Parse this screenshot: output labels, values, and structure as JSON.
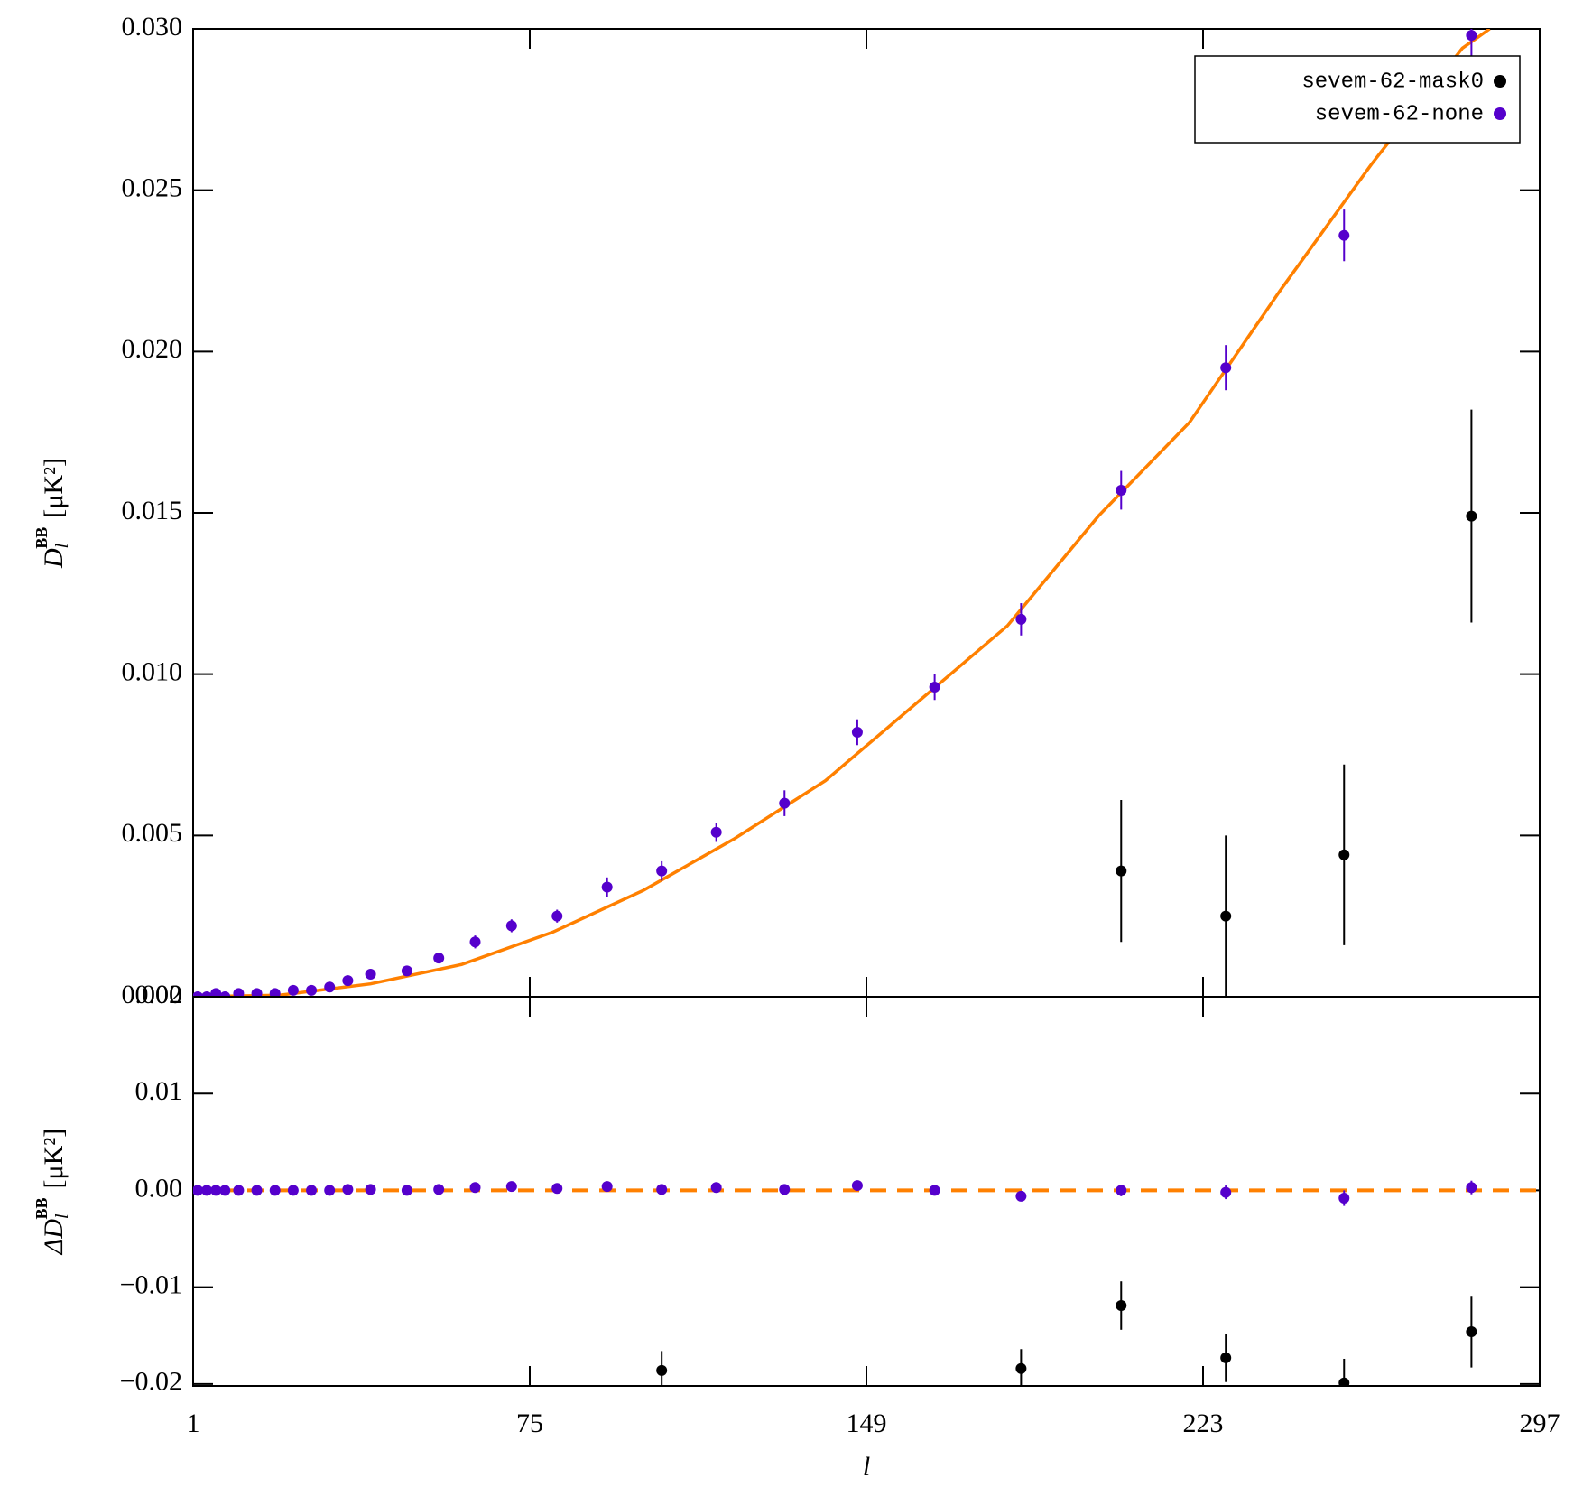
{
  "chart_data": [
    {
      "type": "scatter",
      "ylabel": {
        "symbol": "D",
        "sub": "l",
        "sup": "BB",
        "unit": "[μK²]"
      },
      "xlim": [
        1,
        297
      ],
      "xticks": [
        1,
        75,
        149,
        223,
        297
      ],
      "ylim": [
        0,
        0.03
      ],
      "yticks": [
        {
          "value": 0,
          "label": "0.000"
        },
        {
          "value": 0.005,
          "label": "0.005"
        },
        {
          "value": 0.01,
          "label": "0.010"
        },
        {
          "value": 0.015,
          "label": "0.015"
        },
        {
          "value": 0.02,
          "label": "0.020"
        },
        {
          "value": 0.025,
          "label": "0.025"
        },
        {
          "value": 0.03,
          "label": "0.030"
        }
      ],
      "legend": "upper right",
      "series": [
        {
          "name": "sevem-62-mask0",
          "color": "#000000",
          "x": [
            205,
            228,
            254,
            282
          ],
          "values": [
            0.0039,
            0.0025,
            0.0044,
            0.0149
          ],
          "errors": [
            0.0022,
            0.0025,
            0.0028,
            0.0033
          ]
        },
        {
          "name": "sevem-62-none",
          "color": "#5500cc",
          "x": [
            2,
            4,
            6,
            8,
            11,
            15,
            19,
            23,
            27,
            31,
            35,
            40,
            48,
            55,
            63,
            71,
            81,
            92,
            104,
            116,
            131,
            147,
            164,
            183,
            205,
            228,
            254,
            282
          ],
          "values": [
            0,
            0,
            0.0001,
            0,
            0.0001,
            0.0001,
            0.0001,
            0.0002,
            0.0002,
            0.0003,
            0.0005,
            0.0007,
            0.0008,
            0.0012,
            0.0017,
            0.0022,
            0.0025,
            0.0034,
            0.0039,
            0.0051,
            0.006,
            0.0082,
            0.0096,
            0.0117,
            0.0157,
            0.0195,
            0.0236,
            0.0298
          ],
          "errors": [
            5e-05,
            5e-05,
            5e-05,
            5e-05,
            5e-05,
            5e-05,
            5e-05,
            5e-05,
            5e-05,
            0.0001,
            0.0001,
            0.0001,
            0.0001,
            0.0001,
            0.0002,
            0.0002,
            0.0002,
            0.0003,
            0.0003,
            0.0003,
            0.0004,
            0.0004,
            0.0004,
            0.0005,
            0.0006,
            0.0007,
            0.0008,
            0.0007
          ]
        }
      ],
      "curve": {
        "color": "#ff8000",
        "x": [
          1,
          20,
          40,
          60,
          80,
          100,
          120,
          140,
          160,
          180,
          200,
          220,
          240,
          260,
          280,
          286
        ],
        "values": [
          0,
          5e-05,
          0.0004,
          0.001,
          0.002,
          0.0033,
          0.0049,
          0.0067,
          0.0091,
          0.0115,
          0.0149,
          0.0178,
          0.0219,
          0.0258,
          0.0294,
          0.03
        ]
      }
    },
    {
      "type": "scatter",
      "xlabel": "l",
      "ylabel": {
        "symbol": "ΔD",
        "sub": "l",
        "sup": "BB",
        "unit": "[μK²]"
      },
      "xlim": [
        1,
        297
      ],
      "xticks": [
        1,
        75,
        149,
        223,
        297
      ],
      "ylim": [
        -0.0202,
        0.02
      ],
      "yticks": [
        {
          "value": -0.02,
          "label": "−0.02"
        },
        {
          "value": -0.01,
          "label": "−0.01"
        },
        {
          "value": 0,
          "label": "0.00"
        },
        {
          "value": 0.01,
          "label": "0.01"
        },
        {
          "value": 0.02,
          "label": "0.02"
        }
      ],
      "reference_line": {
        "value": 0,
        "color": "#ff8000",
        "dashed": true
      },
      "series": [
        {
          "color": "#000000",
          "x": [
            104,
            183,
            205,
            228,
            254,
            282
          ],
          "values": [
            -0.0186,
            -0.0184,
            -0.0119,
            -0.0173,
            -0.0199,
            -0.0146
          ],
          "errors": [
            0.002,
            0.002,
            0.0025,
            0.0025,
            0.0025,
            0.0037
          ]
        },
        {
          "color": "#5500cc",
          "x": [
            2,
            4,
            6,
            8,
            11,
            15,
            19,
            23,
            27,
            31,
            35,
            40,
            48,
            55,
            63,
            71,
            81,
            92,
            104,
            116,
            131,
            147,
            164,
            183,
            205,
            228,
            254,
            282
          ],
          "values": [
            0,
            0,
            0,
            0,
            0,
            0,
            0,
            0,
            0,
            0,
            0.0001,
            0.0001,
            0,
            0.0001,
            0.0003,
            0.0004,
            0.0002,
            0.0004,
            0.0001,
            0.0003,
            0.0001,
            0.0005,
            0,
            -0.0006,
            0,
            -0.0002,
            -0.0008,
            0.0003
          ],
          "errors": [
            5e-05,
            5e-05,
            5e-05,
            5e-05,
            5e-05,
            5e-05,
            5e-05,
            5e-05,
            5e-05,
            0.0001,
            0.0001,
            0.0001,
            0.0001,
            0.0001,
            0.0002,
            0.0002,
            0.0002,
            0.0003,
            0.0003,
            0.0003,
            0.0004,
            0.0004,
            0.0004,
            0.0005,
            0.0006,
            0.0007,
            0.0008,
            0.0007
          ]
        }
      ]
    }
  ]
}
